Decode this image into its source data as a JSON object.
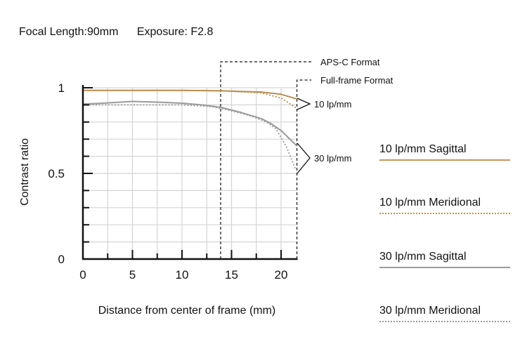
{
  "header": {
    "focal_length": "Focal Length:90mm",
    "exposure": "Exposure: F2.8"
  },
  "chart_data": {
    "type": "line",
    "xlabel": "Distance from center of frame (mm)",
    "ylabel": "Contrast ratio",
    "xlim": [
      0,
      21.6
    ],
    "ylim": [
      0,
      1
    ],
    "x_ticks": [
      0,
      5,
      10,
      15,
      20
    ],
    "y_ticks": [
      0,
      0.5,
      1
    ],
    "y_tick_labels": [
      "0",
      "0.5",
      "1"
    ],
    "grid": true,
    "series": [
      {
        "name": "10 lp/mm Sagittal",
        "color": "#b78d54",
        "style": "solid",
        "x": [
          0,
          5,
          10,
          14,
          18,
          20,
          21.6
        ],
        "y": [
          0.985,
          0.985,
          0.985,
          0.982,
          0.975,
          0.962,
          0.935
        ]
      },
      {
        "name": "10 lp/mm Meridional",
        "color": "#c28a45",
        "style": "dotted",
        "x": [
          0,
          5,
          10,
          14,
          18,
          20,
          21.6
        ],
        "y": [
          0.985,
          0.985,
          0.985,
          0.982,
          0.97,
          0.94,
          0.88
        ]
      },
      {
        "name": "30 lp/mm Sagittal",
        "color": "#9a9a9a",
        "style": "solid",
        "x": [
          0,
          2,
          5,
          8,
          10,
          12,
          14,
          16,
          18,
          19,
          20,
          21.6
        ],
        "y": [
          0.905,
          0.91,
          0.92,
          0.915,
          0.91,
          0.9,
          0.885,
          0.855,
          0.82,
          0.79,
          0.75,
          0.66
        ]
      },
      {
        "name": "30 lp/mm Meridional",
        "color": "#9a9a9a",
        "style": "dotted",
        "x": [
          0,
          5,
          10,
          13,
          15,
          17,
          18.5,
          19.5,
          20.5,
          21.5
        ],
        "y": [
          0.9,
          0.9,
          0.9,
          0.89,
          0.865,
          0.835,
          0.8,
          0.76,
          0.66,
          0.52
        ]
      }
    ],
    "annotations": [
      {
        "text": "APS-C Format",
        "x": 13.9
      },
      {
        "text": "Full-frame Format",
        "x": 21.6
      },
      {
        "text": "10 lp/mm"
      },
      {
        "text": "30 lp/mm"
      }
    ]
  },
  "legend": [
    {
      "label": "10 lp/mm Sagittal",
      "color": "#c8955a",
      "style": "solid"
    },
    {
      "label": "10 lp/mm Meridional",
      "color": "#d0913c",
      "style": "dotted"
    },
    {
      "label": "30 lp/mm Sagittal",
      "color": "#9a9a9a",
      "style": "solid"
    },
    {
      "label": "30 lp/mm Meridional",
      "color": "#9a9a9a",
      "style": "dotted"
    }
  ]
}
